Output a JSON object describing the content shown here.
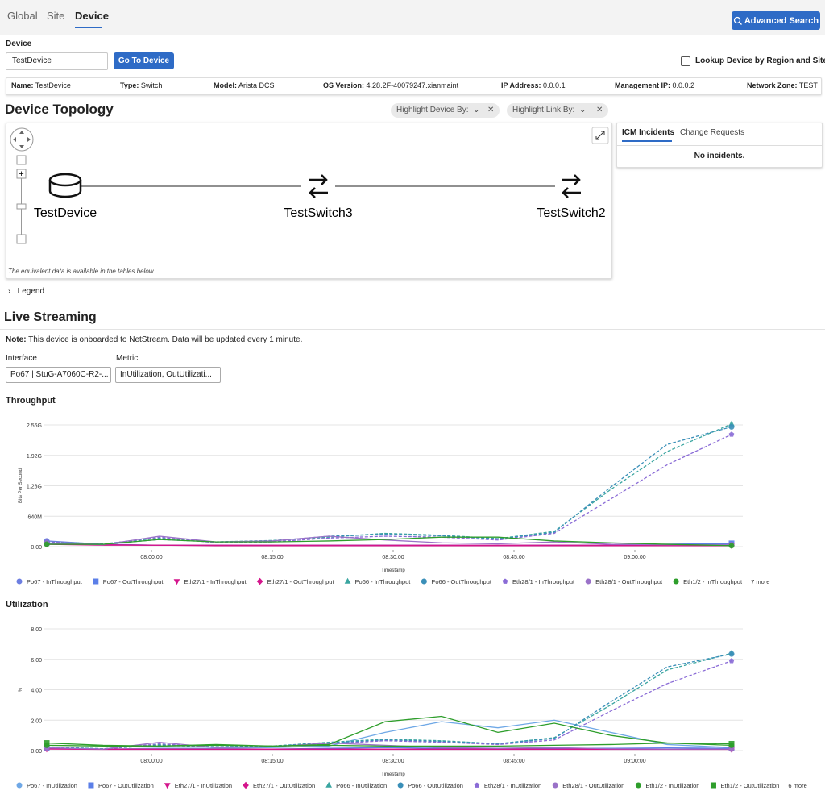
{
  "tabs": [
    "Global",
    "Site",
    "Device"
  ],
  "advanced_search": "Advanced Search",
  "device_form": {
    "label": "Device",
    "input_value": "TestDevice",
    "button": "Go To Device",
    "lookup_checkbox": "Lookup Device by Region and Site"
  },
  "device_info": [
    {
      "label": "Name:",
      "value": "TestDevice"
    },
    {
      "label": "Type:",
      "value": "Switch"
    },
    {
      "label": "Model:",
      "value": "Arista DCS"
    },
    {
      "label": "OS Version:",
      "value": "4.28.2F-40079247.xianmaint"
    },
    {
      "label": "IP Address:",
      "value": "0.0.0.1"
    },
    {
      "label": "Management IP:",
      "value": "0.0.0.2"
    },
    {
      "label": "Network Zone:",
      "value": "TEST"
    }
  ],
  "topology": {
    "title": "Device Topology",
    "highlight_device": "Highlight Device By:",
    "highlight_link": "Highlight Link By:",
    "nodes": [
      "TestDevice",
      "TestSwitch3",
      "TestSwitch2"
    ],
    "footnote": "The equivalent data is available in the tables below.",
    "legend": "Legend"
  },
  "incidents": {
    "tabs": [
      "ICM Incidents",
      "Change Requests"
    ],
    "message": "No incidents."
  },
  "live_streaming": {
    "title": "Live Streaming",
    "note_label": "Note:",
    "note": "This device is onboarded to NetStream. Data will be updated every 1 minute.",
    "interface_label": "Interface",
    "interface_value": "Po67 | StuG-A7060C-R2-...",
    "metric_label": "Metric",
    "metric_value": "InUtilization, OutUtilizati..."
  },
  "chart_data": [
    {
      "type": "line",
      "title": "Throughput",
      "y_label": "Bits Per Second",
      "x_label": "Timestamp",
      "x": [
        "07:47:00",
        "07:54:00",
        "08:01:00",
        "08:08:00",
        "08:15:00",
        "08:22:00",
        "08:29:00",
        "08:36:00",
        "08:43:00",
        "08:50:00",
        "08:57:00",
        "09:04:00",
        "09:12:00"
      ],
      "xlim": [
        "07:47:00",
        "09:13:00"
      ],
      "xticks": [
        "08:00:00",
        "08:15:00",
        "08:30:00",
        "08:45:00",
        "09:00:00"
      ],
      "ylim": [
        0,
        2560000000.0
      ],
      "yticks": [
        {
          "value": 0,
          "label": "0.00"
        },
        {
          "value": 640000000.0,
          "label": "640M"
        },
        {
          "value": 1280000000.0,
          "label": "1.28G"
        },
        {
          "value": 1920000000.0,
          "label": "1.92G"
        },
        {
          "value": 2560000000.0,
          "label": "2.56G"
        }
      ],
      "grid": true,
      "more": "7 more",
      "series": [
        {
          "name": "Po67 - InThroughput",
          "color": "#6c7ee1",
          "marker": "circle",
          "dashed": false,
          "values": [
            120000000.0,
            50000000.0,
            30000000.0,
            30000000.0,
            30000000.0,
            30000000.0,
            30000000.0,
            30000000.0,
            30000000.0,
            30000000.0,
            30000000.0,
            50000000.0,
            60000000.0
          ]
        },
        {
          "name": "Po67 - OutThroughput",
          "color": "#5b7fe8",
          "marker": "square",
          "dashed": false,
          "values": [
            80000000.0,
            40000000.0,
            30000000.0,
            30000000.0,
            20000000.0,
            30000000.0,
            30000000.0,
            30000000.0,
            20000000.0,
            30000000.0,
            30000000.0,
            50000000.0,
            70000000.0
          ]
        },
        {
          "name": "Eth27/1 - InThroughput",
          "color": "#d4158c",
          "marker": "triangle-down",
          "dashed": false,
          "values": [
            50000000.0,
            30000000.0,
            30000000.0,
            20000000.0,
            20000000.0,
            20000000.0,
            20000000.0,
            20000000.0,
            20000000.0,
            20000000.0,
            20000000.0,
            20000000.0,
            20000000.0
          ]
        },
        {
          "name": "Eth27/1 - OutThroughput",
          "color": "#d4158c",
          "marker": "diamond",
          "dashed": false,
          "values": [
            60000000.0,
            40000000.0,
            30000000.0,
            30000000.0,
            30000000.0,
            30000000.0,
            30000000.0,
            30000000.0,
            30000000.0,
            30000000.0,
            30000000.0,
            30000000.0,
            30000000.0
          ]
        },
        {
          "name": "Po66 - InThroughput",
          "color": "#3aa5a0",
          "marker": "triangle-up",
          "dashed": true,
          "values": [
            100000000.0,
            60000000.0,
            180000000.0,
            100000000.0,
            130000000.0,
            200000000.0,
            280000000.0,
            240000000.0,
            170000000.0,
            320000000.0,
            1200000000.0,
            2000000000.0,
            2580000000.0
          ]
        },
        {
          "name": "Po66 - OutThroughput",
          "color": "#3a8fb8",
          "marker": "circle",
          "dashed": true,
          "values": [
            90000000.0,
            50000000.0,
            150000000.0,
            100000000.0,
            120000000.0,
            220000000.0,
            260000000.0,
            230000000.0,
            160000000.0,
            300000000.0,
            1250000000.0,
            2150000000.0,
            2520000000.0
          ]
        },
        {
          "name": "Eth28/1 - InThroughput",
          "color": "#8a6bd6",
          "marker": "pentagon",
          "dashed": true,
          "values": [
            100000000.0,
            50000000.0,
            200000000.0,
            80000000.0,
            100000000.0,
            180000000.0,
            220000000.0,
            200000000.0,
            140000000.0,
            280000000.0,
            1000000000.0,
            1720000000.0,
            2360000000.0
          ]
        },
        {
          "name": "Eth28/1 - OutThroughput",
          "color": "#9a72c8",
          "marker": "circle",
          "dashed": false,
          "values": [
            70000000.0,
            40000000.0,
            220000000.0,
            100000000.0,
            120000000.0,
            220000000.0,
            140000000.0,
            80000000.0,
            60000000.0,
            100000000.0,
            50000000.0,
            40000000.0,
            40000000.0
          ]
        },
        {
          "name": "Eth1/2 - InThroughput",
          "color": "#2e9e2b",
          "marker": "circle",
          "dashed": false,
          "values": [
            50000000.0,
            50000000.0,
            150000000.0,
            100000000.0,
            100000000.0,
            120000000.0,
            150000000.0,
            200000000.0,
            200000000.0,
            120000000.0,
            80000000.0,
            50000000.0,
            20000000.0
          ]
        }
      ]
    },
    {
      "type": "line",
      "title": "Utilization",
      "y_label": "%",
      "x_label": "Timestamp",
      "x": [
        "07:47:00",
        "07:54:00",
        "08:01:00",
        "08:08:00",
        "08:15:00",
        "08:22:00",
        "08:29:00",
        "08:36:00",
        "08:43:00",
        "08:50:00",
        "08:57:00",
        "09:04:00",
        "09:12:00"
      ],
      "xlim": [
        "07:47:00",
        "09:13:00"
      ],
      "xticks": [
        "08:00:00",
        "08:15:00",
        "08:30:00",
        "08:45:00",
        "09:00:00"
      ],
      "ylim": [
        0,
        8
      ],
      "yticks": [
        {
          "value": 0,
          "label": "0.00"
        },
        {
          "value": 2,
          "label": "2.00"
        },
        {
          "value": 4,
          "label": "4.00"
        },
        {
          "value": 6,
          "label": "6.00"
        },
        {
          "value": 8,
          "label": "8.00"
        }
      ],
      "grid": true,
      "more": "6 more",
      "series": [
        {
          "name": "Po67 - InUtilization",
          "color": "#6fa8e6",
          "marker": "circle",
          "dashed": false,
          "values": [
            0.2,
            0.1,
            0.15,
            0.15,
            0.2,
            0.3,
            1.2,
            1.9,
            1.5,
            2.0,
            1.2,
            0.4,
            0.2
          ]
        },
        {
          "name": "Po67 - OutUtilization",
          "color": "#5b7fe8",
          "marker": "square",
          "dashed": false,
          "values": [
            0.15,
            0.1,
            0.1,
            0.1,
            0.1,
            0.15,
            0.2,
            0.15,
            0.12,
            0.15,
            0.15,
            0.18,
            0.15
          ]
        },
        {
          "name": "Eth27/1 - InUtilization",
          "color": "#d4158c",
          "marker": "triangle-down",
          "dashed": false,
          "values": [
            0.1,
            0.08,
            0.08,
            0.08,
            0.08,
            0.08,
            0.08,
            0.08,
            0.08,
            0.08,
            0.08,
            0.08,
            0.08
          ]
        },
        {
          "name": "Eth27/1 - OutUtilization",
          "color": "#d4158c",
          "marker": "diamond",
          "dashed": false,
          "values": [
            0.12,
            0.1,
            0.1,
            0.1,
            0.1,
            0.1,
            0.1,
            0.1,
            0.1,
            0.1,
            0.1,
            0.1,
            0.1
          ]
        },
        {
          "name": "Po66 - InUtilization",
          "color": "#3aa5a0",
          "marker": "triangle-up",
          "dashed": true,
          "values": [
            0.25,
            0.12,
            0.4,
            0.25,
            0.3,
            0.55,
            0.75,
            0.65,
            0.45,
            0.85,
            3.0,
            5.3,
            6.4
          ]
        },
        {
          "name": "Po66 - OutUtilization",
          "color": "#3a8fb8",
          "marker": "circle",
          "dashed": true,
          "values": [
            0.22,
            0.12,
            0.35,
            0.25,
            0.3,
            0.5,
            0.7,
            0.6,
            0.45,
            0.8,
            3.2,
            5.5,
            6.35
          ]
        },
        {
          "name": "Eth28/1 - InUtilization",
          "color": "#8a6bd6",
          "marker": "pentagon",
          "dashed": true,
          "values": [
            0.2,
            0.1,
            0.45,
            0.2,
            0.25,
            0.45,
            0.65,
            0.55,
            0.4,
            0.7,
            2.6,
            4.4,
            5.9
          ]
        },
        {
          "name": "Eth28/1 - OutUtilization",
          "color": "#9a72c8",
          "marker": "circle",
          "dashed": false,
          "values": [
            0.18,
            0.1,
            0.55,
            0.2,
            0.25,
            0.5,
            0.35,
            0.2,
            0.15,
            0.2,
            0.12,
            0.1,
            0.1
          ]
        },
        {
          "name": "Eth1/2 - InUtilization",
          "color": "#2e9e2b",
          "marker": "circle",
          "dashed": false,
          "values": [
            0.35,
            0.3,
            0.3,
            0.35,
            0.3,
            0.4,
            1.9,
            2.25,
            1.2,
            1.8,
            1.0,
            0.5,
            0.35
          ]
        },
        {
          "name": "Eth1/2 - OutUtilization",
          "color": "#2e9e2b",
          "marker": "square",
          "dashed": false,
          "values": [
            0.5,
            0.35,
            0.3,
            0.4,
            0.3,
            0.35,
            0.3,
            0.3,
            0.3,
            0.35,
            0.4,
            0.5,
            0.45
          ]
        }
      ]
    }
  ]
}
